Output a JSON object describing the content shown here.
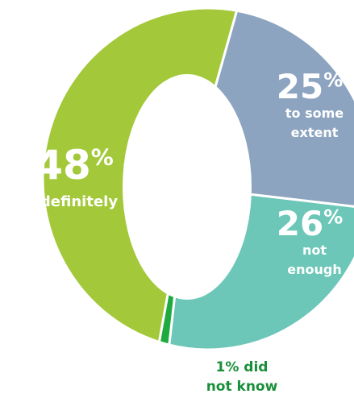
{
  "chart_data": {
    "type": "pie",
    "categories": [
      "definitely",
      "to some extent",
      "not enough",
      "did not know"
    ],
    "values": [
      48,
      25,
      26,
      1
    ],
    "labels": [
      {
        "pct": "48",
        "sym": "%",
        "lines": [
          "definitely"
        ]
      },
      {
        "pct": "25",
        "sym": "%",
        "lines": [
          "to some",
          "extent"
        ]
      },
      {
        "pct": "26",
        "sym": "%",
        "lines": [
          "not",
          "enough"
        ]
      },
      {
        "pct": "1% did",
        "sym": "",
        "lines": [
          "not know"
        ]
      }
    ],
    "colors": [
      "#a3c93a",
      "#8ca4bf",
      "#6cc7b8",
      "#1faa3f"
    ],
    "hole": true
  }
}
